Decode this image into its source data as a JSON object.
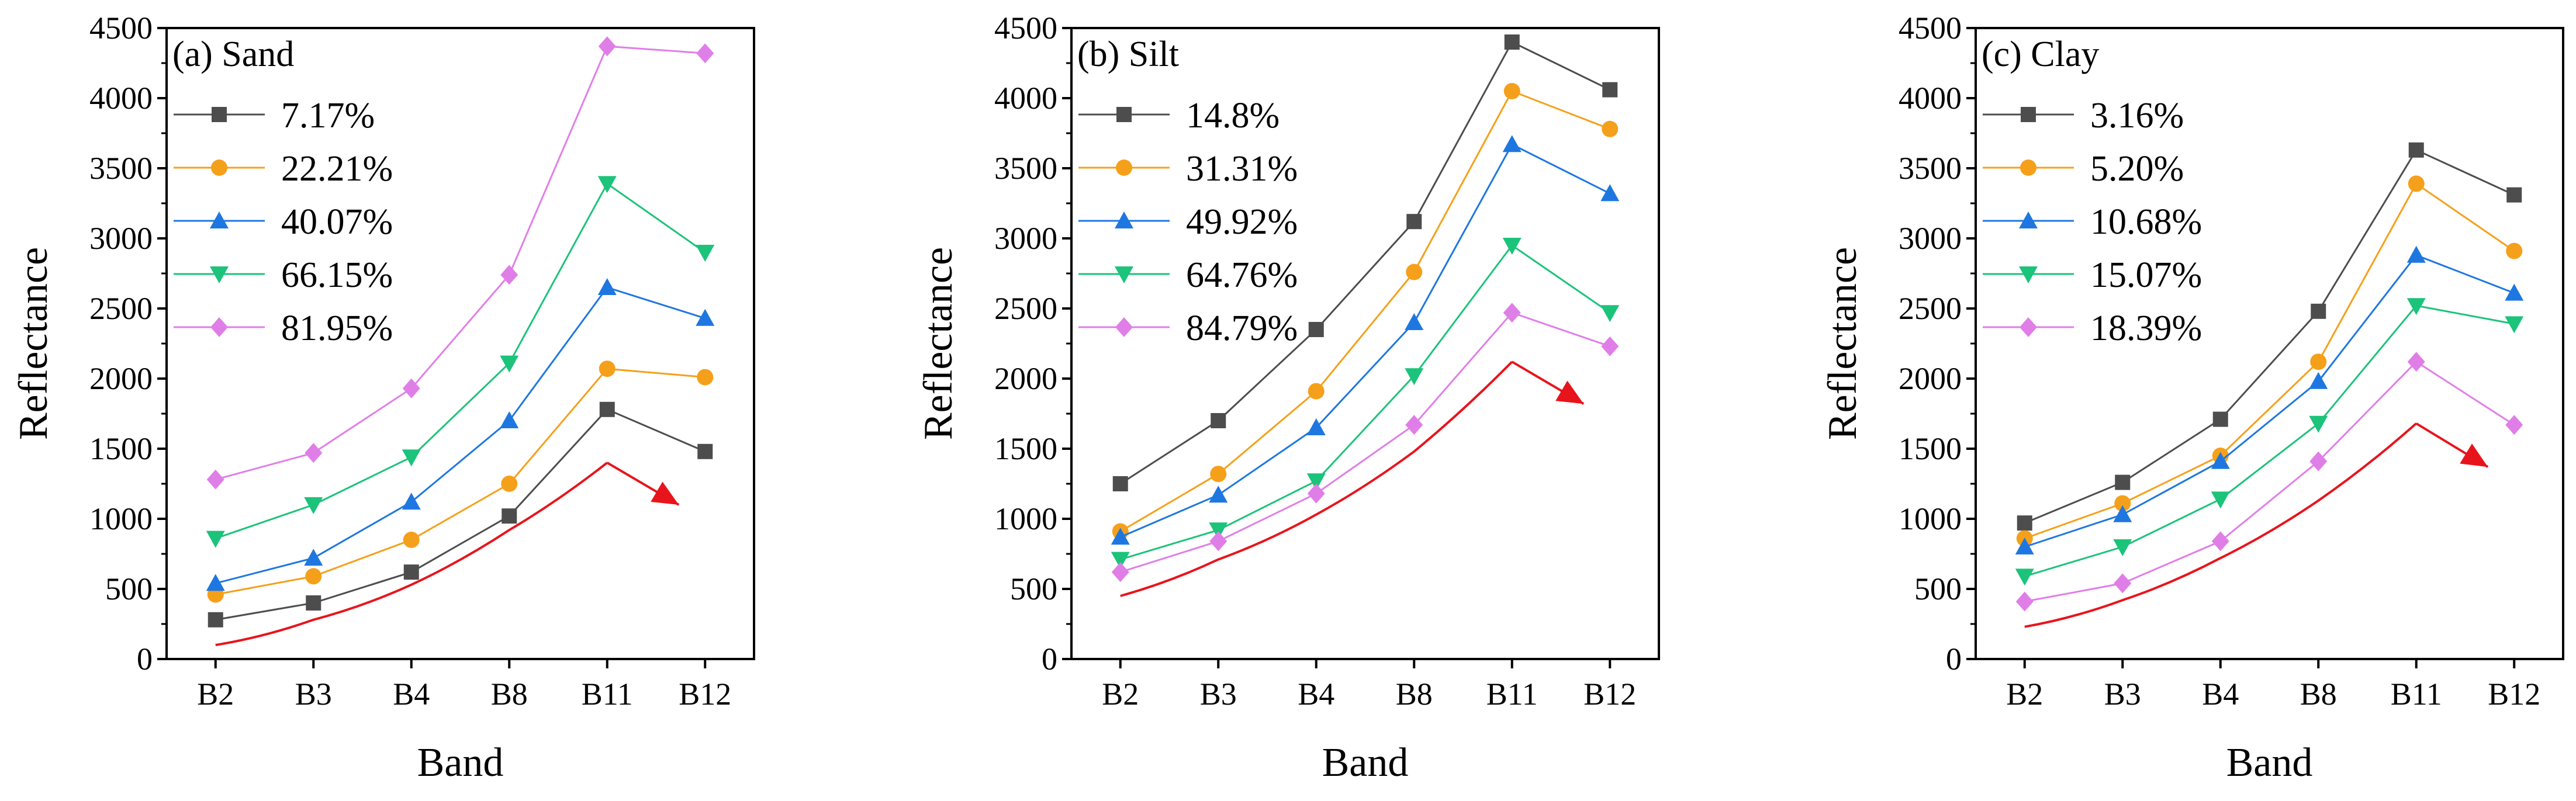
{
  "chart_data": [
    {
      "type": "line",
      "title": "(a) Sand",
      "xlabel": "Band",
      "ylabel": "Reflectance",
      "categories": [
        "B2",
        "B3",
        "B4",
        "B8",
        "B11",
        "B12"
      ],
      "ylim": [
        0,
        4500
      ],
      "yticks": [
        0,
        500,
        1000,
        1500,
        2000,
        2500,
        3000,
        3500,
        4000,
        4500
      ],
      "series": [
        {
          "name": "7.17%",
          "marker": "square",
          "color": "#4d4d4d",
          "values": [
            280,
            400,
            620,
            1020,
            1780,
            1480
          ]
        },
        {
          "name": "22.21%",
          "marker": "circle",
          "color": "#f5a01a",
          "values": [
            460,
            590,
            850,
            1250,
            2070,
            2010
          ]
        },
        {
          "name": "40.07%",
          "marker": "triangle-up",
          "color": "#1e77e0",
          "values": [
            540,
            720,
            1120,
            1700,
            2650,
            2430
          ]
        },
        {
          "name": "66.15%",
          "marker": "triangle-down",
          "color": "#1cc37a",
          "values": [
            860,
            1100,
            1440,
            2110,
            3390,
            2900
          ]
        },
        {
          "name": "81.95%",
          "marker": "diamond",
          "color": "#e07ee8",
          "values": [
            1280,
            1470,
            1930,
            2740,
            4370,
            4320
          ]
        }
      ],
      "trend_arrow": {
        "color": "#e8141c",
        "points": [
          [
            0,
            100
          ],
          [
            1,
            280
          ],
          [
            2,
            530
          ],
          [
            3,
            920
          ],
          [
            4,
            1400
          ]
        ],
        "head": [
          5,
          1100
        ]
      }
    },
    {
      "type": "line",
      "title": "(b) Silt",
      "xlabel": "Band",
      "ylabel": "Reflectance",
      "categories": [
        "B2",
        "B3",
        "B4",
        "B8",
        "B11",
        "B12"
      ],
      "ylim": [
        0,
        4500
      ],
      "yticks": [
        0,
        500,
        1000,
        1500,
        2000,
        2500,
        3000,
        3500,
        4000,
        4500
      ],
      "series": [
        {
          "name": "14.8%",
          "marker": "square",
          "color": "#4d4d4d",
          "values": [
            1250,
            1700,
            2350,
            3120,
            4400,
            4060
          ]
        },
        {
          "name": "31.31%",
          "marker": "circle",
          "color": "#f5a01a",
          "values": [
            910,
            1320,
            1910,
            2760,
            4050,
            3780
          ]
        },
        {
          "name": "49.92%",
          "marker": "triangle-up",
          "color": "#1e77e0",
          "values": [
            870,
            1170,
            1650,
            2400,
            3670,
            3320
          ]
        },
        {
          "name": "64.76%",
          "marker": "triangle-down",
          "color": "#1cc37a",
          "values": [
            710,
            920,
            1270,
            2020,
            2950,
            2470
          ]
        },
        {
          "name": "84.79%",
          "marker": "diamond",
          "color": "#e07ee8",
          "values": [
            620,
            840,
            1180,
            1670,
            2470,
            2230
          ]
        }
      ],
      "trend_arrow": {
        "color": "#e8141c",
        "points": [
          [
            0,
            450
          ],
          [
            1,
            710
          ],
          [
            2,
            1030
          ],
          [
            3,
            1480
          ],
          [
            4,
            2120
          ]
        ],
        "head": [
          5,
          1820
        ]
      }
    },
    {
      "type": "line",
      "title": "(c) Clay",
      "xlabel": "Band",
      "ylabel": "Reflectance",
      "categories": [
        "B2",
        "B3",
        "B4",
        "B8",
        "B11",
        "B12"
      ],
      "ylim": [
        0,
        4500
      ],
      "yticks": [
        0,
        500,
        1000,
        1500,
        2000,
        2500,
        3000,
        3500,
        4000,
        4500
      ],
      "series": [
        {
          "name": "3.16%",
          "marker": "square",
          "color": "#4d4d4d",
          "values": [
            970,
            1260,
            1710,
            2480,
            3630,
            3310
          ]
        },
        {
          "name": "5.20%",
          "marker": "circle",
          "color": "#f5a01a",
          "values": [
            860,
            1110,
            1450,
            2120,
            3390,
            2910
          ]
        },
        {
          "name": "10.68%",
          "marker": "triangle-up",
          "color": "#1e77e0",
          "values": [
            800,
            1030,
            1410,
            1980,
            2880,
            2610
          ]
        },
        {
          "name": "15.07%",
          "marker": "triangle-down",
          "color": "#1cc37a",
          "values": [
            590,
            800,
            1140,
            1680,
            2520,
            2390
          ]
        },
        {
          "name": "18.39%",
          "marker": "diamond",
          "color": "#e07ee8",
          "values": [
            410,
            540,
            840,
            1410,
            2120,
            1670
          ]
        }
      ],
      "trend_arrow": {
        "color": "#e8141c",
        "points": [
          [
            0,
            230
          ],
          [
            1,
            420
          ],
          [
            2,
            720
          ],
          [
            3,
            1130
          ],
          [
            4,
            1680
          ]
        ],
        "head": [
          5,
          1370
        ]
      }
    }
  ]
}
